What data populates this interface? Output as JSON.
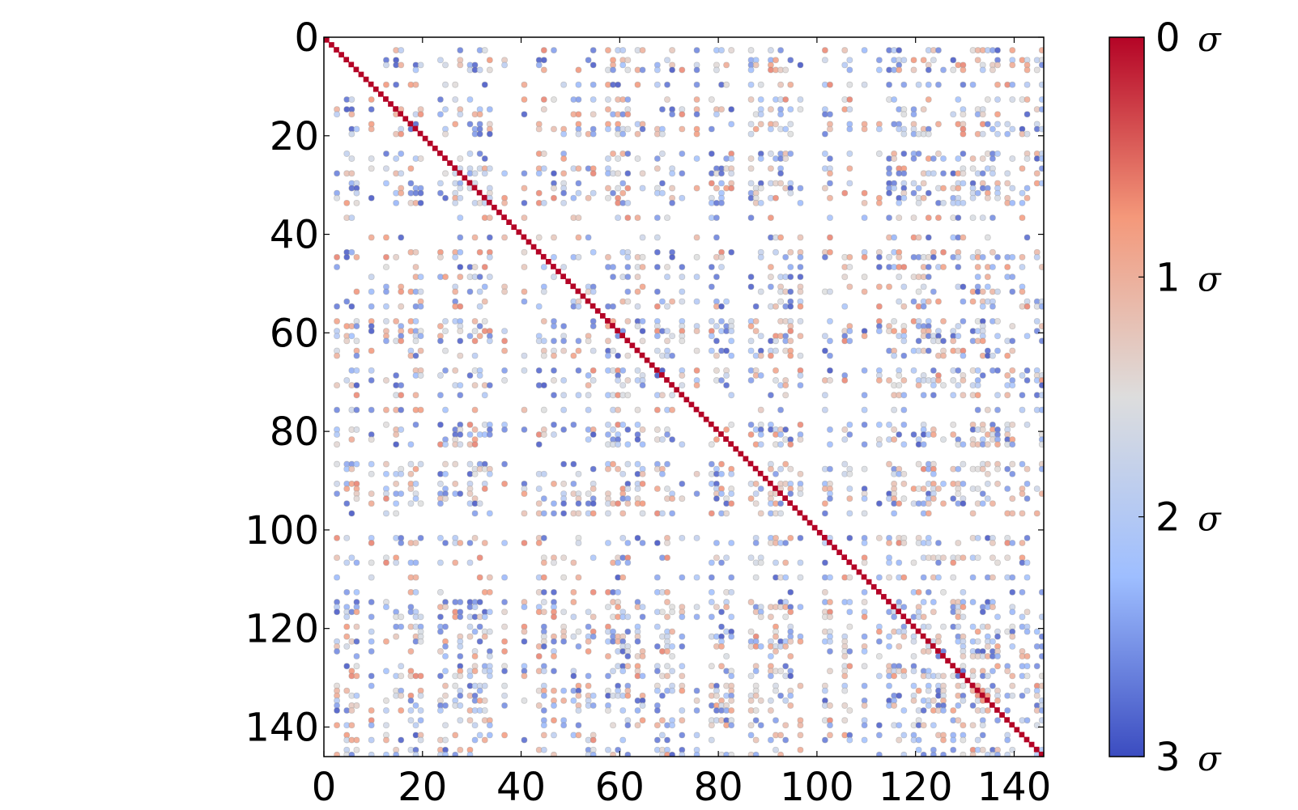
{
  "chart_data": {
    "type": "heatmap",
    "title": "",
    "xlabel": "",
    "ylabel": "",
    "matrix_size": 146,
    "xlim": [
      0,
      146
    ],
    "ylim": [
      146,
      0
    ],
    "x_ticks": [
      "0",
      "20",
      "40",
      "60",
      "80",
      "100",
      "120",
      "140"
    ],
    "y_ticks": [
      "0",
      "20",
      "40",
      "60",
      "80",
      "100",
      "120",
      "140"
    ],
    "diagonal_value": 0,
    "off_diagonal_range": [
      0.6,
      3
    ],
    "colorbar": {
      "ticks": [
        "0",
        "1",
        "2",
        "3"
      ],
      "unit_symbol": "σ",
      "range": [
        0,
        3
      ],
      "colormap": "coolwarm_reversed",
      "colors": [
        "#b40426",
        "#f4987a",
        "#dddddd",
        "#9ebeff",
        "#3b4cc0"
      ]
    },
    "grid": false,
    "legend": "none"
  }
}
